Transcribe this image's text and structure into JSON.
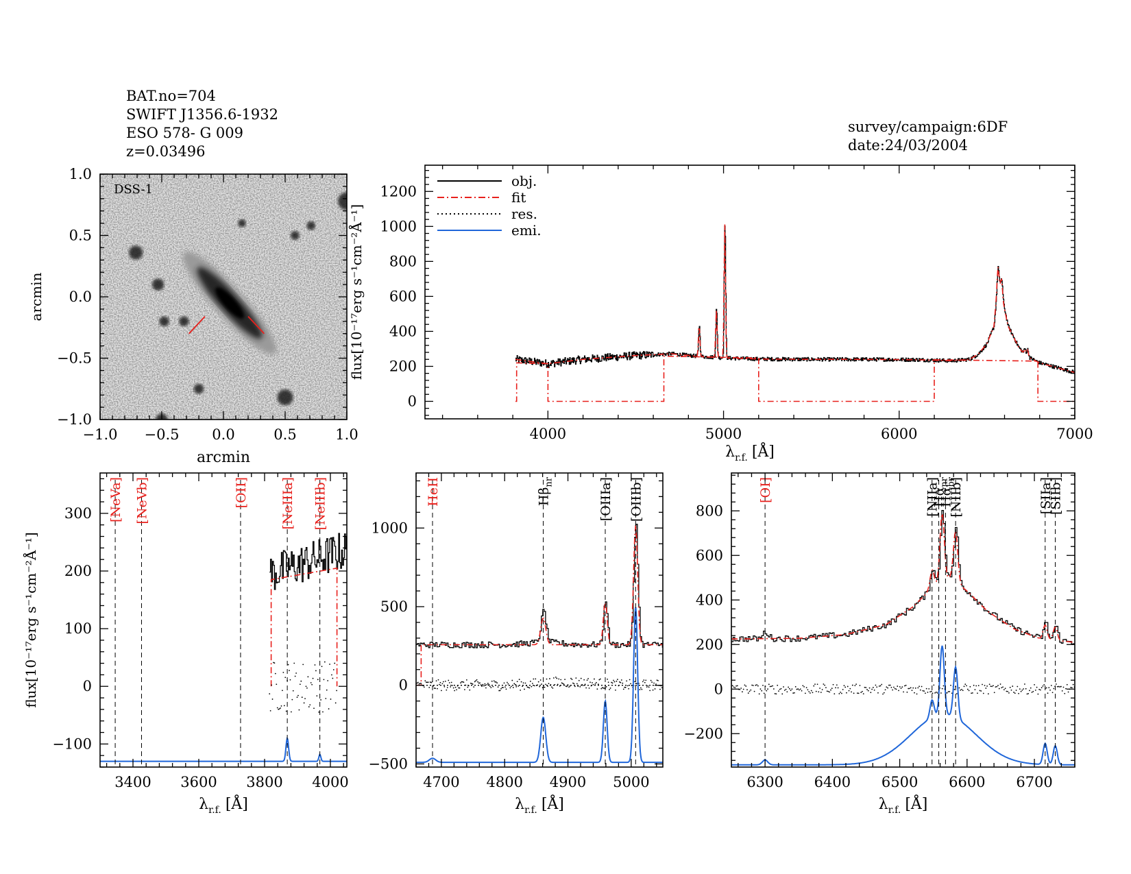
{
  "header": {
    "object_lines": [
      "BAT.no=704",
      "SWIFT J1356.6-1932",
      "ESO 578- G 009",
      "z=0.03496"
    ],
    "survey_lines": [
      "survey/campaign:6DF",
      "date:24/03/2004"
    ]
  },
  "colors": {
    "obj": "#000000",
    "fit": "#e8201c",
    "res": "#000000",
    "emi": "#1f66d9"
  },
  "chart_data": [
    {
      "id": "dss",
      "type": "image",
      "image_label": "DSS-1",
      "xlabel": "arcmin",
      "ylabel": "arcmin",
      "xlim": [
        -1.0,
        1.0
      ],
      "ylim": [
        -1.0,
        1.0
      ],
      "xticks": [
        -1.0,
        -0.5,
        0.0,
        0.5,
        1.0
      ],
      "yticks": [
        -1.0,
        -0.5,
        0.0,
        0.5,
        1.0
      ],
      "xtick_labels": [
        "−1.0",
        "−0.5",
        "0.0",
        "0.5",
        "1.0"
      ],
      "ytick_labels": [
        "−1.0",
        "−0.5",
        "0.0",
        "0.5",
        "1.0"
      ],
      "galaxy": {
        "x": 0.05,
        "y": -0.05,
        "position_angle_deg": 48,
        "major_arcmin": 1.1,
        "minor_arcmin": 0.16
      },
      "stars": [
        {
          "x": -0.71,
          "y": 0.36,
          "r": 0.035
        },
        {
          "x": -0.53,
          "y": 0.1,
          "r": 0.03
        },
        {
          "x": -0.48,
          "y": -0.2,
          "r": 0.025
        },
        {
          "x": -0.32,
          "y": -0.2,
          "r": 0.025
        },
        {
          "x": 0.15,
          "y": 0.6,
          "r": 0.02
        },
        {
          "x": 0.58,
          "y": 0.5,
          "r": 0.022
        },
        {
          "x": 0.71,
          "y": 0.58,
          "r": 0.022
        },
        {
          "x": 1.0,
          "y": 0.78,
          "r": 0.045
        },
        {
          "x": 0.5,
          "y": -0.82,
          "r": 0.04
        },
        {
          "x": -0.2,
          "y": -0.75,
          "r": 0.025
        },
        {
          "x": -0.5,
          "y": -1.0,
          "r": 0.03
        }
      ],
      "markers": [
        {
          "x1": -0.28,
          "y1": -0.3,
          "x2": -0.15,
          "y2": -0.16
        },
        {
          "x1": 0.2,
          "y1": -0.16,
          "x2": 0.33,
          "y2": -0.3
        }
      ]
    },
    {
      "id": "full",
      "type": "line",
      "xlabel_main": "λ",
      "xlabel_sub": "r.f.",
      "xlabel_unit": "[Å]",
      "ylabel": "flux[10⁻¹⁷erg s⁻¹cm⁻²Å⁻¹]",
      "xlim": [
        3300,
        7000
      ],
      "ylim": [
        -100,
        1350
      ],
      "xticks": [
        4000,
        5000,
        6000,
        7000
      ],
      "yticks": [
        0,
        200,
        400,
        600,
        800,
        1000,
        1200
      ],
      "legend": {
        "position": "top-left",
        "entries": [
          "obj.",
          "fit",
          "res.",
          "emi."
        ]
      },
      "continuum_knots": [
        [
          3815,
          240
        ],
        [
          3900,
          228
        ],
        [
          4000,
          215
        ],
        [
          4200,
          240
        ],
        [
          4500,
          262
        ],
        [
          4700,
          272
        ],
        [
          4850,
          258
        ],
        [
          5000,
          248
        ],
        [
          5200,
          242
        ],
        [
          5500,
          240
        ],
        [
          5800,
          240
        ],
        [
          6100,
          238
        ],
        [
          6300,
          232
        ],
        [
          6400,
          240
        ],
        [
          6450,
          270
        ],
        [
          6500,
          330
        ],
        [
          6540,
          430
        ],
        [
          6562,
          700
        ],
        [
          6585,
          600
        ],
        [
          6620,
          430
        ],
        [
          6680,
          310
        ],
        [
          6720,
          260
        ],
        [
          6800,
          220
        ],
        [
          7000,
          165
        ]
      ],
      "emission_peaks": [
        [
          4861,
          440
        ],
        [
          4959,
          530
        ],
        [
          5007,
          1035
        ],
        [
          6563,
          770
        ],
        [
          6583,
          700
        ],
        [
          6716,
          300
        ],
        [
          6731,
          295
        ]
      ],
      "fit_segments": [
        [
          3815,
          0
        ],
        [
          3822,
          0
        ],
        [
          3822,
          220
        ],
        [
          4000,
          215
        ],
        [
          4000,
          0
        ],
        [
          4660,
          0
        ],
        [
          4660,
          258
        ],
        [
          5200,
          248
        ],
        [
          5200,
          0
        ],
        [
          6200,
          0
        ],
        [
          6200,
          238
        ],
        [
          6790,
          230
        ],
        [
          6790,
          0
        ],
        [
          7000,
          0
        ]
      ]
    },
    {
      "id": "z1",
      "type": "line",
      "xlabel_main": "λ",
      "xlabel_sub": "r.f.",
      "xlabel_unit": "[Å]",
      "ylabel": "flux[10⁻¹⁷erg s⁻¹cm⁻²Å⁻¹]",
      "xlim": [
        3300,
        4050
      ],
      "ylim": [
        -140,
        370
      ],
      "xticks": [
        3400,
        3600,
        3800,
        4000
      ],
      "yticks": [
        -100,
        0,
        100,
        200,
        300
      ],
      "xtick_labels": [
        "3400",
        "3600",
        "3800",
        "4000"
      ],
      "ytick_labels": [
        "−100",
        "0",
        "100",
        "200",
        "300"
      ],
      "obj_range": [
        3815,
        4050
      ],
      "obj_base": 195,
      "obj_slope": 0.18,
      "fit_segments": [
        [
          3820,
          0
        ],
        [
          3820,
          185
        ],
        [
          4020,
          205
        ],
        [
          4020,
          0
        ]
      ],
      "res_range": [
        3815,
        4020
      ],
      "emi_baseline": -130,
      "emi_lines": [
        [
          3869,
          40,
          4
        ],
        [
          3968,
          12,
          3
        ]
      ],
      "lines": [
        {
          "label": "[NeVa]",
          "x": 3346,
          "color": "#e8201c"
        },
        {
          "label": "[NeVb]",
          "x": 3426,
          "color": "#e8201c"
        },
        {
          "label": "[OII]",
          "x": 3727,
          "color": "#e8201c"
        },
        {
          "label": "[NeIIIa]",
          "x": 3869,
          "color": "#e8201c"
        },
        {
          "label": "[NeIIIb]",
          "x": 3968,
          "color": "#e8201c"
        }
      ]
    },
    {
      "id": "z2",
      "type": "line",
      "xlabel_main": "λ",
      "xlabel_sub": "r.f.",
      "xlabel_unit": "[Å]",
      "xlim": [
        4660,
        5050
      ],
      "ylim": [
        -520,
        1350
      ],
      "xticks": [
        4700,
        4800,
        4900,
        5000
      ],
      "yticks": [
        -500,
        0,
        500,
        1000
      ],
      "xtick_labels": [
        "4700",
        "4800",
        "4900",
        "5000"
      ],
      "ytick_labels": [
        "−500",
        "0",
        "500",
        "1000"
      ],
      "continuum": 258,
      "obj_peaks": [
        [
          4861,
          200,
          4
        ],
        [
          4959,
          290,
          3
        ],
        [
          5007,
          780,
          3.2
        ]
      ],
      "fit_peaks": [
        [
          4861,
          170,
          4
        ],
        [
          4959,
          270,
          3
        ],
        [
          5007,
          760,
          3.2
        ]
      ],
      "fit_start": 4668,
      "emi_baseline": -490,
      "emi_lines": [
        [
          4686,
          20,
          5
        ],
        [
          4861,
          220,
          4
        ],
        [
          4959,
          300,
          3
        ],
        [
          5007,
          760,
          3.2
        ]
      ],
      "lines": [
        {
          "label": "HeII",
          "x": 4686,
          "color": "#e8201c"
        },
        {
          "label": "Hβ",
          "label_sub": "nr",
          "x": 4861,
          "color": "#000000"
        },
        {
          "label": "[OIIIa]",
          "x": 4959,
          "color": "#000000"
        },
        {
          "label": "[OIIIb]",
          "x": 5007,
          "color": "#000000"
        }
      ]
    },
    {
      "id": "z3",
      "type": "line",
      "xlabel_main": "λ",
      "xlabel_sub": "r.f.",
      "xlabel_unit": "[Å]",
      "xlim": [
        6250,
        6760
      ],
      "ylim": [
        -350,
        970
      ],
      "xticks": [
        6300,
        6400,
        6500,
        6600,
        6700
      ],
      "yticks": [
        -200,
        0,
        200,
        400,
        600,
        800
      ],
      "xtick_labels": [
        "6300",
        "6400",
        "6500",
        "6600",
        "6700"
      ],
      "ytick_labels": [
        "−200",
        "0",
        "200",
        "400",
        "600",
        "800"
      ],
      "continuum_knots": [
        [
          6250,
          225
        ],
        [
          6350,
          228
        ],
        [
          6420,
          245
        ],
        [
          6480,
          290
        ],
        [
          6520,
          370
        ],
        [
          6550,
          460
        ],
        [
          6575,
          500
        ],
        [
          6600,
          440
        ],
        [
          6630,
          350
        ],
        [
          6670,
          270
        ],
        [
          6710,
          225
        ],
        [
          6760,
          210
        ]
      ],
      "obj_peaks": [
        [
          6300,
          30,
          4
        ],
        [
          6548,
          90,
          3
        ],
        [
          6563,
          330,
          3.2
        ],
        [
          6583,
          240,
          3.2
        ],
        [
          6716,
          75,
          3
        ],
        [
          6731,
          65,
          3
        ]
      ],
      "fit_peaks": [
        [
          6548,
          80,
          3
        ],
        [
          6563,
          310,
          3.2
        ],
        [
          6583,
          230,
          3.2
        ],
        [
          6716,
          65,
          3
        ],
        [
          6731,
          60,
          3
        ]
      ],
      "emi_baseline": -340,
      "emi_broad": [
        6565,
        225,
        48
      ],
      "emi_lines": [
        [
          6300,
          22,
          4
        ],
        [
          6548,
          80,
          3
        ],
        [
          6563,
          310,
          3.2
        ],
        [
          6583,
          230,
          3.2
        ],
        [
          6716,
          95,
          3
        ],
        [
          6731,
          85,
          3
        ]
      ],
      "lines": [
        {
          "label": "[OI]",
          "x": 6300,
          "color": "#e8201c"
        },
        {
          "label": "[NIIa]",
          "x": 6548,
          "color": "#000000"
        },
        {
          "label": "Hα",
          "label_sub": "nr",
          "x": 6558,
          "color": "#000000"
        },
        {
          "label": "Hα",
          "label_sub": "br",
          "x": 6568,
          "color": "#000000"
        },
        {
          "label": "[NIIb]",
          "x": 6583,
          "color": "#000000"
        },
        {
          "label": "[SIIa]",
          "x": 6716,
          "color": "#000000"
        },
        {
          "label": "[SIIb]",
          "x": 6731,
          "color": "#000000"
        }
      ]
    }
  ]
}
